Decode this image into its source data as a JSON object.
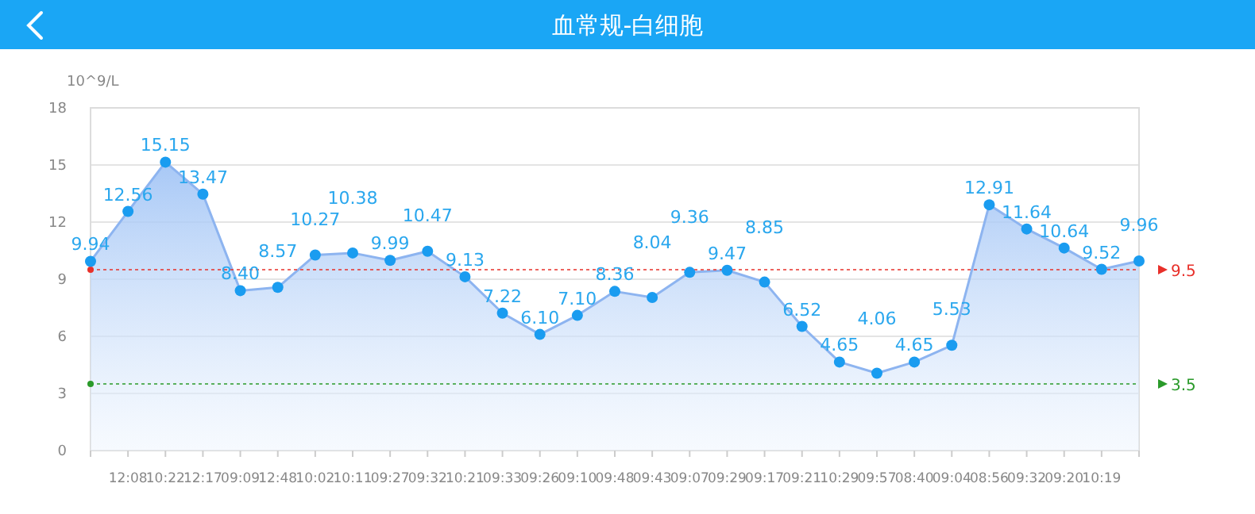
{
  "chart_data": {
    "type": "area",
    "title": "血常规-白细胞",
    "ylabel": "10^9/L",
    "categories": [
      null,
      "12:08",
      "10:22",
      "12:17",
      "09:09",
      "12:48",
      "10:02",
      "10:11",
      "09:27",
      "09:32",
      "10:21",
      "09:33",
      "09:26",
      "09:10",
      "09:48",
      "09:43",
      "09:07",
      "09:29",
      "09:17",
      "09:21",
      "10:29",
      "09:57",
      "08:40",
      "09:04",
      "08:56",
      "09:32",
      "09:20",
      "10:19",
      null
    ],
    "values": [
      9.94,
      12.56,
      15.15,
      13.47,
      8.4,
      8.57,
      10.27,
      10.38,
      9.99,
      10.47,
      9.13,
      7.22,
      6.1,
      7.1,
      8.36,
      8.04,
      9.36,
      9.47,
      8.85,
      6.52,
      4.65,
      4.06,
      4.65,
      5.53,
      12.91,
      11.64,
      10.64,
      9.52,
      9.96
    ],
    "value_labels": [
      "9.94",
      "12.56",
      "15.15",
      "13.47",
      "8.40",
      "8.57",
      "10.27",
      "10.38",
      "9.99",
      "10.47",
      "9.13",
      "7.22",
      "6.10",
      "7.10",
      "8.36",
      "8.04",
      "9.36",
      "9.47",
      "8.85",
      "6.52",
      "4.65",
      "4.06",
      "4.65",
      "5.53",
      "12.91",
      "11.64",
      "10.64",
      "9.52",
      "9.96"
    ],
    "color": "#1a9cf0",
    "ylim": [
      0,
      18
    ],
    "yticks": [
      0,
      3,
      6,
      9,
      12,
      15,
      18
    ],
    "grid": "y",
    "marker": "circle",
    "ref_lines": [
      {
        "axis": "y",
        "value": 9.5,
        "label": "9.5",
        "color": "#e8302a",
        "line_style": "dotted"
      },
      {
        "axis": "y",
        "value": 3.5,
        "label": "3.5",
        "color": "#2a9a2a",
        "line_style": "dotted"
      }
    ]
  }
}
